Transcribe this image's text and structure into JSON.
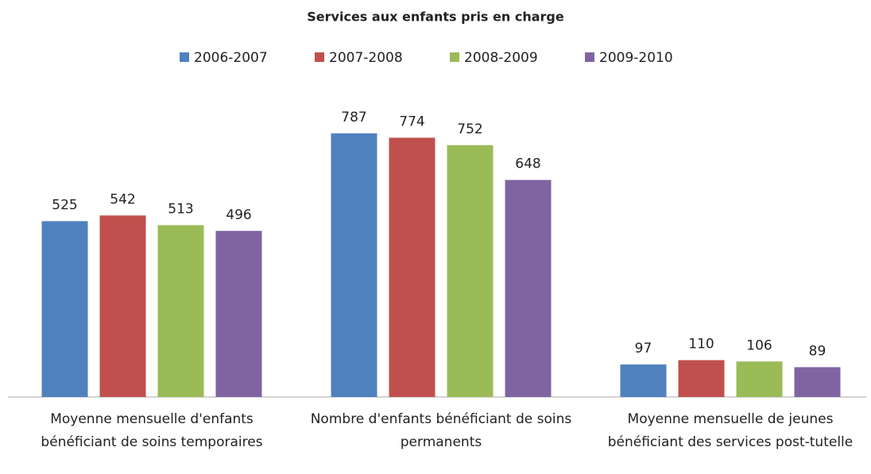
{
  "chart_data": {
    "type": "bar",
    "title": "Services aux enfants pris en charge",
    "categories": [
      "Moyenne mensuelle d'enfants bénéficiant de soins temporaires",
      "Nombre d'enfants bénéficiant de soins permanents",
      "Moyenne mensuelle de jeunes bénéficiant des services post-tutelle"
    ],
    "series": [
      {
        "name": "2006-2007",
        "color": "#4f81bd",
        "values": [
          525,
          787,
          97
        ]
      },
      {
        "name": "2007-2008",
        "color": "#c0504d",
        "values": [
          542,
          774,
          110
        ]
      },
      {
        "name": "2008-2009",
        "color": "#9bbb59",
        "values": [
          513,
          752,
          106
        ]
      },
      {
        "name": "2009-2010",
        "color": "#8064a2",
        "values": [
          496,
          648,
          89
        ]
      }
    ],
    "legend": "top"
  }
}
